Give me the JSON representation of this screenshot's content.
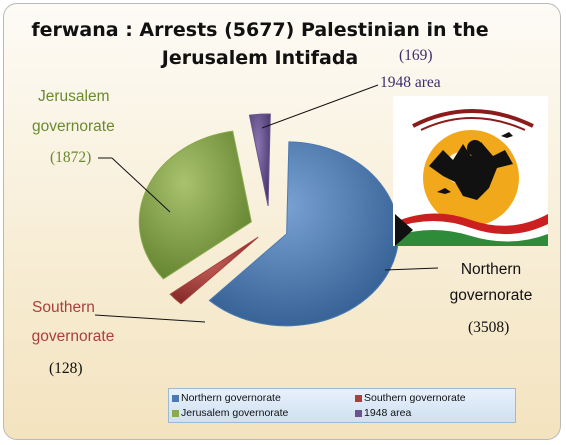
{
  "chart_data": {
    "type": "pie",
    "title": "ferwana : Arrests (5677)  Palestinian in the Jerusalem Intifada",
    "slices": [
      {
        "label": "Northern governorate",
        "label_lines": [
          "Northern",
          "governorate"
        ],
        "value": 3508,
        "value_text": "(3508)",
        "color": "#4a7ab2"
      },
      {
        "label": "Southern governorate",
        "label_lines": [
          "Southern",
          "governorate"
        ],
        "value": 128,
        "value_text": "(128)",
        "color": "#a8403c"
      },
      {
        "label": "Jerusalem governorate",
        "label_lines": [
          "Jerusalem",
          "governorate"
        ],
        "value": 1872,
        "value_text": "(1872)",
        "color": "#8aaa4c"
      },
      {
        "label": "1948 area",
        "label_lines": [
          "1948 area"
        ],
        "value": 169,
        "value_text": "(169)",
        "color": "#6a548e"
      }
    ],
    "legend": {
      "position": "bottom",
      "items": [
        "Northern governorate",
        "Southern governorate",
        "Jerusalem governorate",
        "1948 area"
      ]
    }
  },
  "colors": {
    "northern": "#4a7ab2",
    "southern": "#a8403c",
    "jerusalem": "#8aaa4c",
    "area1948": "#6a548e"
  }
}
